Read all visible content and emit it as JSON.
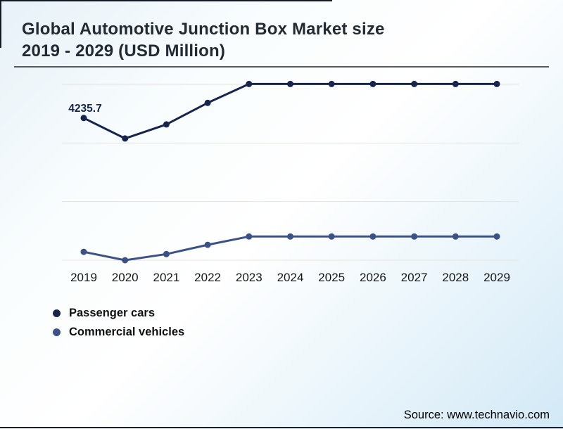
{
  "title": {
    "line1": "Global Automotive Junction Box Market size",
    "line2": "2019 - 2029 (USD Million)"
  },
  "chart_data": {
    "type": "line",
    "title": "Global Automotive Junction Box Market size 2019 - 2029 (USD Million)",
    "categories": [
      "2019",
      "2020",
      "2021",
      "2022",
      "2023",
      "2024",
      "2025",
      "2026",
      "2027",
      "2028",
      "2029"
    ],
    "series": [
      {
        "name": "Passenger cars",
        "color": "#17254c",
        "values": [
          4235.7,
          3770,
          4090,
          4580,
          5010,
          5010,
          5010,
          5010,
          5010,
          5010,
          5010
        ]
      },
      {
        "name": "Commercial vehicles",
        "color": "#3b5286",
        "values": [
          1190,
          1000,
          1140,
          1350,
          1540,
          1540,
          1540,
          1540,
          1540,
          1540,
          1540
        ]
      }
    ],
    "annotations": [
      {
        "series": "Passenger cars",
        "category": "2019",
        "text": "4235.7"
      }
    ],
    "ylim": [
      1000,
      5000
    ],
    "xlabel": "",
    "ylabel": "",
    "grid": "horizontal",
    "gridline_color": "#e5e3df",
    "legend_position": "bottom-left"
  },
  "legend": {
    "items": [
      {
        "label": "Passenger cars",
        "color": "#17254c"
      },
      {
        "label": "Commercial vehicles",
        "color": "#3b5286"
      }
    ]
  },
  "source": {
    "text": "Source: www.technavio.com"
  },
  "colors": {
    "title_text": "#232a33",
    "axis_label_text": "#161616",
    "background_tint": "#d2e9f6"
  }
}
